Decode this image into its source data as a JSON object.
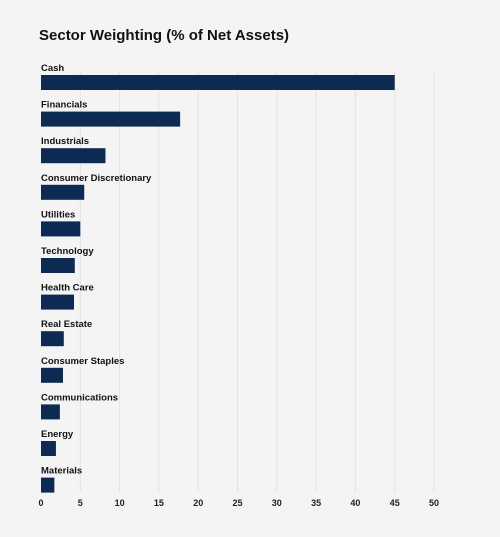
{
  "chart_data": {
    "type": "bar",
    "orientation": "horizontal",
    "title": "Sector Weighting (% of Net Assets)",
    "xlabel": "",
    "ylabel": "",
    "categories": [
      "Cash",
      "Financials",
      "Industrials",
      "Consumer Discretionary",
      "Utilities",
      "Technology",
      "Health Care",
      "Real Estate",
      "Consumer Staples",
      "Communications",
      "Energy",
      "Materials"
    ],
    "values": [
      45.0,
      17.7,
      8.2,
      5.5,
      5.0,
      4.3,
      4.2,
      2.9,
      2.8,
      2.4,
      1.9,
      1.7
    ],
    "xlim": [
      0,
      50
    ],
    "xticks": [
      "0",
      "5",
      "10",
      "15",
      "20",
      "25",
      "30",
      "35",
      "40",
      "45",
      "50"
    ],
    "grid": true,
    "legend": "none",
    "bar_color": "#0d2a52"
  }
}
